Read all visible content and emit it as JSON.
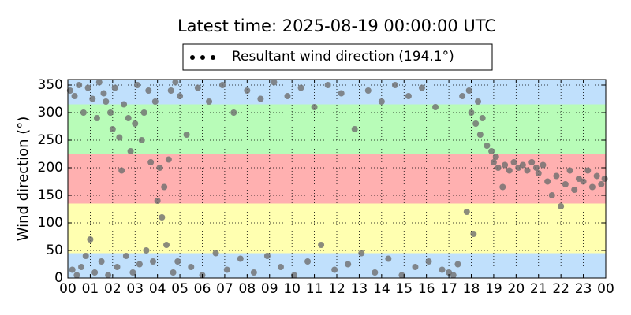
{
  "chart_data": {
    "type": "scatter",
    "title": "Latest time: 2025-08-19 00:00:00 UTC",
    "ylabel": "Wind direction (°)",
    "xlim": [
      0,
      24
    ],
    "ylim": [
      0,
      360
    ],
    "xticks": [
      {
        "value": 0,
        "label": "00"
      },
      {
        "value": 1,
        "label": "01"
      },
      {
        "value": 2,
        "label": "02"
      },
      {
        "value": 3,
        "label": "03"
      },
      {
        "value": 4,
        "label": "04"
      },
      {
        "value": 5,
        "label": "05"
      },
      {
        "value": 6,
        "label": "06"
      },
      {
        "value": 7,
        "label": "07"
      },
      {
        "value": 8,
        "label": "08"
      },
      {
        "value": 9,
        "label": "09"
      },
      {
        "value": 10,
        "label": "10"
      },
      {
        "value": 11,
        "label": "11"
      },
      {
        "value": 12,
        "label": "12"
      },
      {
        "value": 13,
        "label": "13"
      },
      {
        "value": 14,
        "label": "14"
      },
      {
        "value": 15,
        "label": "15"
      },
      {
        "value": 16,
        "label": "16"
      },
      {
        "value": 17,
        "label": "17"
      },
      {
        "value": 18,
        "label": "18"
      },
      {
        "value": 19,
        "label": "19"
      },
      {
        "value": 20,
        "label": "20"
      },
      {
        "value": 21,
        "label": "21"
      },
      {
        "value": 22,
        "label": "22"
      },
      {
        "value": 23,
        "label": "23"
      },
      {
        "value": 24,
        "label": "00"
      }
    ],
    "yticks": [
      0,
      50,
      100,
      150,
      200,
      250,
      300,
      350
    ],
    "grid": true,
    "legend": "top",
    "bands": [
      {
        "from": 0,
        "to": 45,
        "color": "#c0e0fc"
      },
      {
        "from": 45,
        "to": 135,
        "color": "#ffffb0"
      },
      {
        "from": 135,
        "to": 225,
        "color": "#ffb0b0"
      },
      {
        "from": 225,
        "to": 315,
        "color": "#b8fcb8"
      },
      {
        "from": 315,
        "to": 360,
        "color": "#c0e0fc"
      }
    ],
    "series": [
      {
        "name": "Resultant wind direction (194.1°)",
        "color": "#6e6e6e",
        "x": [
          0.1,
          0.2,
          0.3,
          0.4,
          0.5,
          0.6,
          0.7,
          0.8,
          0.9,
          1.0,
          1.1,
          1.2,
          1.3,
          1.4,
          1.5,
          1.6,
          1.7,
          1.8,
          1.9,
          2.0,
          2.1,
          2.2,
          2.3,
          2.4,
          2.5,
          2.6,
          2.7,
          2.8,
          2.9,
          3.0,
          3.1,
          3.2,
          3.3,
          3.4,
          3.5,
          3.6,
          3.7,
          3.8,
          3.9,
          4.0,
          4.1,
          4.2,
          4.3,
          4.4,
          4.5,
          4.6,
          4.7,
          4.8,
          4.9,
          5.0,
          5.3,
          5.5,
          5.8,
          6.0,
          6.3,
          6.6,
          6.9,
          7.1,
          7.4,
          7.7,
          8.0,
          8.3,
          8.6,
          8.9,
          9.2,
          9.5,
          9.8,
          10.1,
          10.4,
          10.7,
          11.0,
          11.3,
          11.6,
          11.9,
          12.2,
          12.5,
          12.8,
          13.1,
          13.4,
          13.7,
          14.0,
          14.3,
          14.6,
          14.9,
          15.2,
          15.5,
          15.8,
          16.1,
          16.4,
          16.7,
          17.0,
          17.2,
          17.4,
          17.6,
          17.8,
          17.9,
          18.0,
          18.1,
          18.2,
          18.3,
          18.4,
          18.5,
          18.7,
          18.9,
          19.0,
          19.1,
          19.2,
          19.4,
          19.5,
          19.7,
          19.9,
          20.1,
          20.3,
          20.5,
          20.7,
          20.9,
          21.0,
          21.2,
          21.4,
          21.6,
          21.8,
          22.0,
          22.2,
          22.4,
          22.6,
          22.8,
          23.0,
          23.2,
          23.4,
          23.6,
          23.8,
          23.95
        ],
        "values": [
          340,
          15,
          330,
          5,
          350,
          20,
          300,
          40,
          345,
          70,
          325,
          10,
          290,
          355,
          30,
          335,
          320,
          5,
          300,
          270,
          345,
          20,
          255,
          195,
          315,
          40,
          290,
          230,
          10,
          280,
          350,
          25,
          250,
          300,
          50,
          340,
          210,
          30,
          320,
          140,
          200,
          110,
          165,
          60,
          215,
          340,
          10,
          355,
          30,
          330,
          260,
          20,
          345,
          5,
          320,
          45,
          350,
          15,
          300,
          35,
          340,
          10,
          325,
          40,
          355,
          20,
          330,
          5,
          345,
          30,
          310,
          60,
          350,
          15,
          335,
          25,
          270,
          45,
          340,
          10,
          320,
          35,
          350,
          5,
          330,
          20,
          345,
          30,
          310,
          15,
          10,
          5,
          25,
          330,
          120,
          340,
          300,
          80,
          280,
          320,
          260,
          290,
          240,
          230,
          210,
          220,
          200,
          165,
          205,
          195,
          210,
          200,
          205,
          195,
          210,
          200,
          190,
          205,
          175,
          150,
          185,
          130,
          170,
          195,
          160,
          180,
          175,
          195,
          165,
          185,
          170,
          180
        ]
      }
    ]
  }
}
